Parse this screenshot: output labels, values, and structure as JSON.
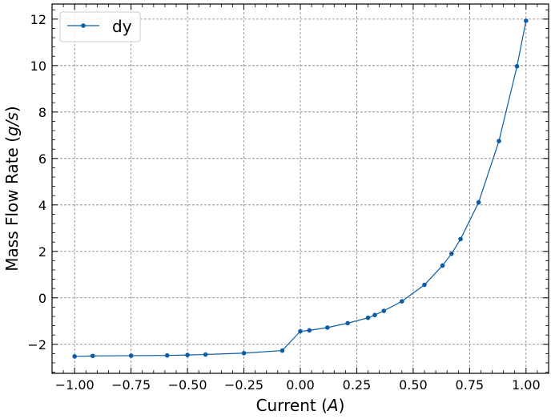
{
  "chart_data": {
    "type": "line",
    "title": "",
    "xlabel": "Current",
    "xlabel_unit": "A",
    "ylabel": "Mass Flow Rate",
    "ylabel_unit": "g/s",
    "xlim": [
      -1.1,
      1.1
    ],
    "ylim": [
      -3.25,
      12.65
    ],
    "xticks": [
      -1.0,
      -0.75,
      -0.5,
      -0.25,
      0.0,
      0.25,
      0.5,
      0.75,
      1.0
    ],
    "xtick_labels": [
      "−1.00",
      "−0.75",
      "−0.50",
      "−0.25",
      "0.00",
      "0.25",
      "0.50",
      "0.75",
      "1.00"
    ],
    "yticks": [
      -2,
      0,
      2,
      4,
      6,
      8,
      10,
      12
    ],
    "ytick_labels": [
      "−2",
      "0",
      "2",
      "4",
      "6",
      "8",
      "10",
      "12"
    ],
    "grid": true,
    "legend_position": "top-left",
    "series": [
      {
        "name": "dy",
        "color": "#0c5da5",
        "marker": "circle",
        "x": [
          -1.0,
          -0.92,
          -0.75,
          -0.59,
          -0.5,
          -0.42,
          -0.25,
          -0.08,
          0.0,
          0.04,
          0.12,
          0.21,
          0.3,
          0.33,
          0.37,
          0.45,
          0.55,
          0.63,
          0.67,
          0.71,
          0.79,
          0.88,
          0.96,
          1.0
        ],
        "y": [
          -2.52,
          -2.5,
          -2.49,
          -2.48,
          -2.46,
          -2.44,
          -2.38,
          -2.27,
          -1.44,
          -1.4,
          -1.28,
          -1.09,
          -0.86,
          -0.74,
          -0.56,
          -0.15,
          0.56,
          1.39,
          1.9,
          2.53,
          4.11,
          6.75,
          9.97,
          11.93
        ]
      }
    ]
  }
}
